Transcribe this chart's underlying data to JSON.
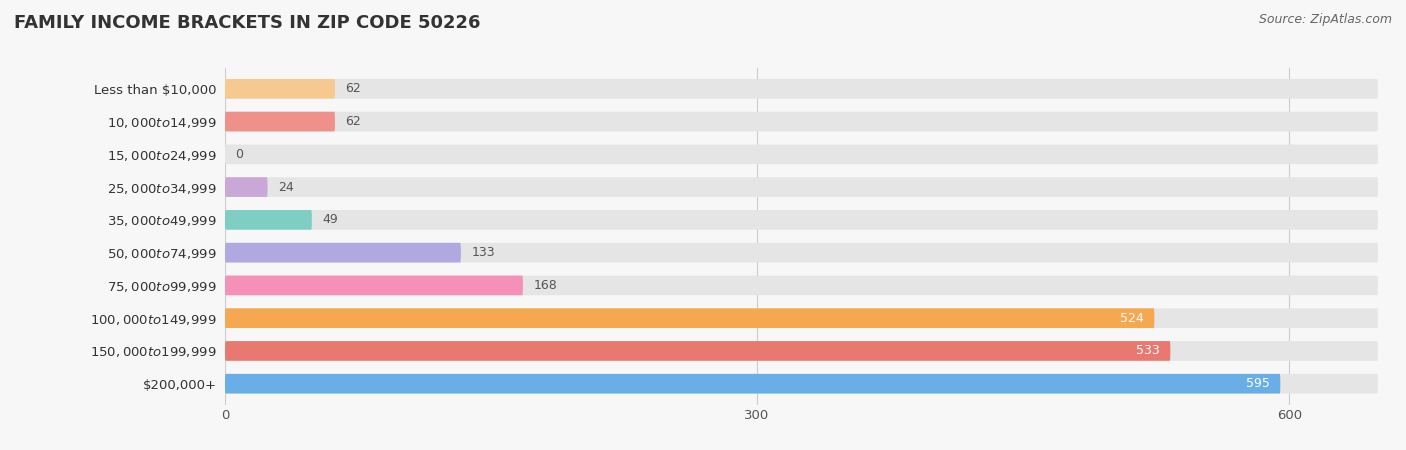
{
  "title": "FAMILY INCOME BRACKETS IN ZIP CODE 50226",
  "source": "Source: ZipAtlas.com",
  "categories": [
    "Less than $10,000",
    "$10,000 to $14,999",
    "$15,000 to $24,999",
    "$25,000 to $34,999",
    "$35,000 to $49,999",
    "$50,000 to $74,999",
    "$75,000 to $99,999",
    "$100,000 to $149,999",
    "$150,000 to $199,999",
    "$200,000+"
  ],
  "values": [
    62,
    62,
    0,
    24,
    49,
    133,
    168,
    524,
    533,
    595
  ],
  "bar_colors": [
    "#F5C990",
    "#F0908A",
    "#A8C0E8",
    "#C9A8D8",
    "#7ECEC4",
    "#B0A8E0",
    "#F590B8",
    "#F5A850",
    "#E87870",
    "#6AAEE8"
  ],
  "background_color": "#f7f7f7",
  "bar_bg_color": "#e5e5e5",
  "xlim": [
    0,
    650
  ],
  "xticks": [
    0,
    300,
    600
  ],
  "title_fontsize": 13,
  "label_fontsize": 9.5,
  "value_fontsize": 9
}
